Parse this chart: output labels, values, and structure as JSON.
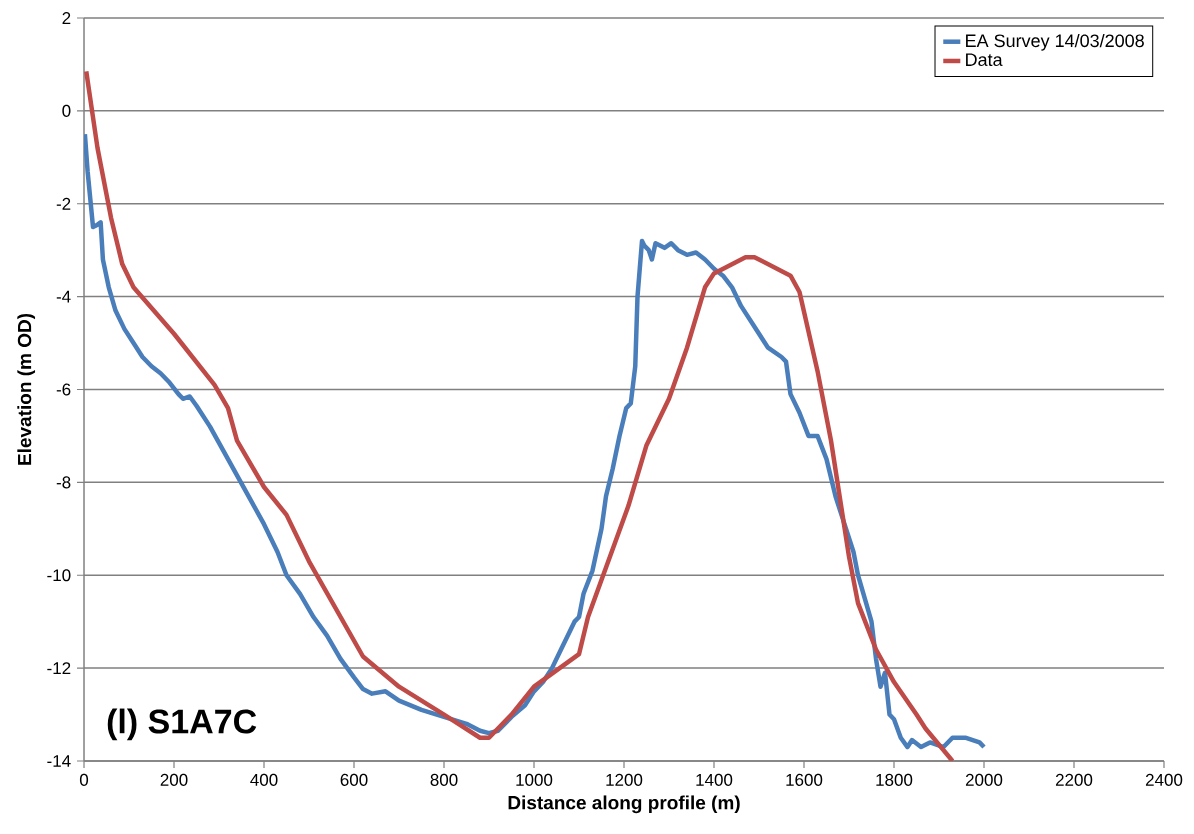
{
  "chart_data": {
    "type": "line",
    "xlabel": "Distance along profile (m)",
    "ylabel": "Elevation (m OD)",
    "annotations": [
      "(l) S1A7C"
    ],
    "xlim": [
      0,
      2400
    ],
    "ylim": [
      -14,
      2
    ],
    "xticks": [
      0,
      200,
      400,
      600,
      800,
      1000,
      1200,
      1400,
      1600,
      1800,
      2000,
      2200,
      2400
    ],
    "yticks": [
      -14,
      -12,
      -10,
      -8,
      -6,
      -4,
      -2,
      0,
      2
    ],
    "grid": "y",
    "legend": "top right",
    "marker": "none",
    "line_style": "solid",
    "series": [
      {
        "name": "EA Survey 14/03/2008",
        "color": "#4a7ebb",
        "x": [
          2,
          8,
          15,
          20,
          30,
          37,
          42,
          55,
          70,
          90,
          110,
          130,
          150,
          170,
          190,
          210,
          220,
          235,
          250,
          280,
          320,
          360,
          400,
          430,
          450,
          480,
          510,
          540,
          570,
          600,
          620,
          640,
          670,
          700,
          750,
          800,
          850,
          880,
          900,
          920,
          950,
          980,
          1000,
          1020,
          1040,
          1060,
          1080,
          1090,
          1100,
          1110,
          1130,
          1150,
          1160,
          1175,
          1190,
          1205,
          1215,
          1225,
          1230,
          1240,
          1245,
          1255,
          1262,
          1270,
          1290,
          1305,
          1320,
          1340,
          1360,
          1380,
          1400,
          1420,
          1440,
          1460,
          1480,
          1500,
          1520,
          1550,
          1560,
          1570,
          1590,
          1610,
          1630,
          1650,
          1670,
          1690,
          1710,
          1720,
          1735,
          1750,
          1760,
          1770,
          1780,
          1790,
          1800,
          1815,
          1830,
          1840,
          1860,
          1880,
          1910,
          1930,
          1960,
          1990,
          2000
        ],
        "values": [
          -0.5,
          -1.3,
          -2.0,
          -2.5,
          -2.45,
          -2.4,
          -3.2,
          -3.8,
          -4.3,
          -4.7,
          -5.0,
          -5.3,
          -5.5,
          -5.65,
          -5.85,
          -6.1,
          -6.2,
          -6.15,
          -6.35,
          -6.8,
          -7.5,
          -8.2,
          -8.9,
          -9.5,
          -10.0,
          -10.4,
          -10.9,
          -11.3,
          -11.8,
          -12.2,
          -12.45,
          -12.55,
          -12.5,
          -12.7,
          -12.9,
          -13.05,
          -13.2,
          -13.35,
          -13.4,
          -13.35,
          -13.05,
          -12.8,
          -12.5,
          -12.3,
          -12.0,
          -11.6,
          -11.2,
          -11.0,
          -10.9,
          -10.4,
          -9.9,
          -9.0,
          -8.3,
          -7.7,
          -7.0,
          -6.4,
          -6.3,
          -5.5,
          -4.0,
          -2.8,
          -2.9,
          -3.0,
          -3.2,
          -2.85,
          -2.95,
          -2.85,
          -3.0,
          -3.1,
          -3.05,
          -3.2,
          -3.4,
          -3.55,
          -3.8,
          -4.2,
          -4.5,
          -4.8,
          -5.1,
          -5.3,
          -5.4,
          -6.1,
          -6.5,
          -7.0,
          -7.0,
          -7.5,
          -8.3,
          -8.9,
          -9.5,
          -10.0,
          -10.5,
          -11.0,
          -11.8,
          -12.4,
          -12.1,
          -13.0,
          -13.1,
          -13.5,
          -13.7,
          -13.55,
          -13.7,
          -13.6,
          -13.7,
          -13.5,
          -13.5,
          -13.6,
          -13.7
        ]
      },
      {
        "name": "Data",
        "color": "#be4b48",
        "x": [
          5,
          30,
          60,
          85,
          110,
          200,
          290,
          320,
          340,
          400,
          450,
          500,
          620,
          700,
          800,
          880,
          900,
          950,
          1000,
          1100,
          1120,
          1180,
          1210,
          1250,
          1300,
          1340,
          1380,
          1400,
          1470,
          1490,
          1570,
          1590,
          1630,
          1660,
          1700,
          1720,
          1760,
          1800,
          1850,
          1870,
          1930
        ],
        "values": [
          0.85,
          -0.8,
          -2.3,
          -3.3,
          -3.8,
          -4.8,
          -5.9,
          -6.4,
          -7.1,
          -8.1,
          -8.7,
          -9.7,
          -11.75,
          -12.4,
          -13.0,
          -13.5,
          -13.5,
          -13.0,
          -12.4,
          -11.7,
          -10.9,
          -9.3,
          -8.5,
          -7.2,
          -6.2,
          -5.1,
          -3.8,
          -3.5,
          -3.15,
          -3.15,
          -3.55,
          -3.9,
          -5.6,
          -7.1,
          -9.6,
          -10.6,
          -11.6,
          -12.3,
          -13.0,
          -13.3,
          -14.0
        ]
      }
    ]
  }
}
